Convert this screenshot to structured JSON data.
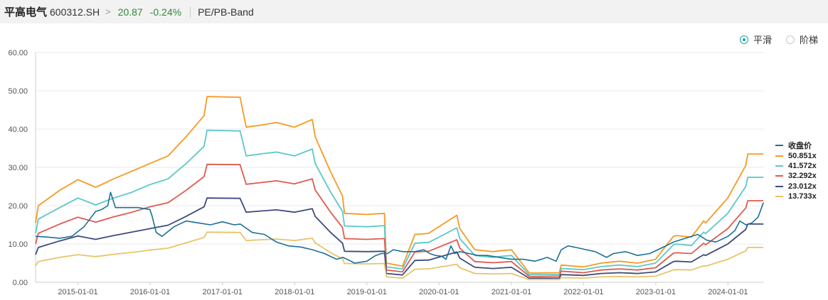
{
  "header": {
    "stock_name": "平高电气",
    "stock_code": "600312.SH",
    "chevron": ">",
    "price": "20.87",
    "change": "-0.24%",
    "band_label": "PE/PB-Band"
  },
  "mode_options": [
    {
      "label": "平滑",
      "selected": true
    },
    {
      "label": "阶梯",
      "selected": false
    }
  ],
  "chart_data": {
    "type": "line",
    "y_ticks": [
      "0.00",
      "10.00",
      "20.00",
      "30.00",
      "40.00",
      "50.00",
      "60.00"
    ],
    "ylim": [
      0,
      60
    ],
    "x_ticks": [
      "2015-01-01",
      "2016-01-01",
      "2017-01-01",
      "2018-01-01",
      "2019-01-01",
      "2020-01-01",
      "2021-01-01",
      "2022-01-01",
      "2023-01-01",
      "2024-01-01"
    ],
    "xlim": [
      "2014-06-01",
      "2024-07-01"
    ],
    "grid": "horizontal",
    "legend_placement": "right",
    "band_x": [
      "2014-06-01",
      "2014-06-15",
      "2014-10-01",
      "2015-01-01",
      "2015-04-01",
      "2015-07-01",
      "2015-10-01",
      "2015-12-31",
      "2016-04-01",
      "2016-07-01",
      "2016-09-30",
      "2016-10-15",
      "2017-03-31",
      "2017-05-01",
      "2017-07-10",
      "2017-10-01",
      "2017-12-31",
      "2018-03-31",
      "2018-04-15",
      "2018-06-30",
      "2018-08-31",
      "2018-09-10",
      "2018-12-31",
      "2019-03-31",
      "2019-04-10",
      "2019-06-30",
      "2019-09-01",
      "2019-10-31",
      "2019-11-10",
      "2020-03-31",
      "2020-04-15",
      "2020-06-30",
      "2020-09-30",
      "2020-10-31",
      "2021-01-01",
      "2021-03-31",
      "2021-04-15",
      "2021-08-31",
      "2021-09-10",
      "2021-12-31",
      "2022-03-31",
      "2022-06-30",
      "2022-09-30",
      "2022-12-31",
      "2023-03-31",
      "2023-04-15",
      "2023-06-30",
      "2023-08-31",
      "2023-09-10",
      "2023-12-31",
      "2024-03-31",
      "2024-04-10",
      "2024-06-28"
    ],
    "series": [
      {
        "name": "收盘价",
        "color": "#1c6f99",
        "role": "price",
        "x": [
          "2014-06-01",
          "2014-08-01",
          "2014-10-01",
          "2014-12-01",
          "2015-02-01",
          "2015-04-01",
          "2015-05-01",
          "2015-06-01",
          "2015-06-15",
          "2015-07-10",
          "2015-09-01",
          "2015-11-01",
          "2015-12-31",
          "2016-01-10",
          "2016-02-01",
          "2016-03-01",
          "2016-05-01",
          "2016-07-01",
          "2016-09-01",
          "2016-11-01",
          "2017-01-01",
          "2017-03-01",
          "2017-04-01",
          "2017-06-01",
          "2017-08-01",
          "2017-10-01",
          "2017-12-01",
          "2018-02-01",
          "2018-04-01",
          "2018-06-01",
          "2018-08-01",
          "2018-09-01",
          "2018-10-01",
          "2018-11-01",
          "2019-01-01",
          "2019-02-15",
          "2019-03-15",
          "2019-04-15",
          "2019-05-15",
          "2019-07-01",
          "2019-09-01",
          "2019-10-15",
          "2019-11-15",
          "2019-12-15",
          "2020-01-15",
          "2020-02-05",
          "2020-03-01",
          "2020-03-20",
          "2020-04-15",
          "2020-06-01",
          "2020-07-15",
          "2020-09-01",
          "2020-11-01",
          "2021-01-01",
          "2021-03-01",
          "2021-05-01",
          "2021-07-01",
          "2021-08-15",
          "2021-09-10",
          "2021-10-15",
          "2021-12-01",
          "2022-01-15",
          "2022-03-01",
          "2022-04-27",
          "2022-06-01",
          "2022-08-01",
          "2022-10-01",
          "2022-12-01",
          "2023-02-01",
          "2023-04-01",
          "2023-06-01",
          "2023-08-01",
          "2023-09-15",
          "2023-11-01",
          "2024-01-01",
          "2024-02-05",
          "2024-03-01",
          "2024-04-01",
          "2024-05-01",
          "2024-06-01",
          "2024-06-28"
        ],
        "values": [
          12.0,
          11.8,
          11.5,
          12.0,
          14.5,
          18.5,
          19.0,
          20.0,
          23.5,
          19.5,
          19.5,
          19.5,
          19.0,
          17.5,
          13.0,
          12.0,
          14.5,
          16.0,
          15.5,
          15.0,
          15.8,
          15.0,
          15.2,
          13.0,
          12.5,
          10.5,
          9.5,
          9.2,
          8.5,
          7.5,
          6.0,
          6.5,
          5.8,
          5.0,
          5.5,
          7.0,
          7.5,
          7.5,
          8.5,
          8.0,
          8.0,
          8.5,
          7.5,
          7.0,
          6.8,
          6.0,
          9.5,
          7.5,
          8.0,
          7.5,
          7.0,
          7.0,
          6.5,
          6.0,
          6.0,
          5.5,
          6.5,
          5.5,
          8.5,
          9.5,
          9.0,
          8.5,
          8.0,
          6.5,
          7.5,
          8.0,
          7.0,
          7.5,
          9.0,
          10.5,
          11.5,
          12.5,
          11.0,
          10.5,
          12.0,
          13.5,
          16.0,
          15.0,
          15.5,
          17.0,
          20.8
        ]
      },
      {
        "name": "50.851x",
        "color": "#f59a23",
        "values": [
          15.5,
          20.0,
          24.0,
          26.8,
          24.8,
          27.0,
          29.0,
          31.0,
          33.0,
          38.0,
          43.5,
          48.5,
          48.3,
          40.5,
          41.0,
          41.7,
          40.5,
          42.5,
          38.0,
          29.0,
          22.5,
          18.0,
          17.7,
          18.0,
          5.0,
          4.2,
          12.5,
          12.7,
          12.8,
          17.5,
          14.0,
          8.5,
          8.0,
          8.2,
          8.5,
          2.5,
          2.4,
          2.5,
          4.5,
          4.0,
          5.0,
          5.5,
          5.0,
          6.0,
          12.0,
          12.2,
          11.8,
          16.0,
          15.5,
          22.0,
          30.5,
          33.5,
          33.5
        ]
      },
      {
        "name": "41.572x",
        "color": "#5bc8c8",
        "values": [
          12.8,
          16.5,
          19.5,
          22.0,
          20.2,
          22.0,
          23.5,
          25.5,
          27.0,
          31.0,
          35.5,
          39.7,
          39.5,
          33.0,
          33.5,
          34.0,
          33.0,
          34.8,
          31.0,
          23.7,
          18.5,
          14.7,
          14.5,
          14.8,
          4.0,
          3.5,
          10.2,
          10.4,
          10.4,
          14.2,
          11.4,
          7.0,
          6.5,
          6.7,
          7.0,
          2.0,
          2.0,
          2.0,
          3.6,
          3.3,
          4.1,
          4.5,
          4.1,
          5.0,
          9.8,
          10.0,
          9.6,
          13.1,
          12.7,
          18.0,
          25.0,
          27.4,
          27.4
        ]
      },
      {
        "name": "32.292x",
        "color": "#e05a4e",
        "values": [
          10.0,
          12.8,
          15.2,
          17.0,
          15.7,
          17.1,
          18.3,
          19.7,
          20.8,
          24.0,
          27.6,
          30.8,
          30.7,
          25.6,
          26.0,
          26.5,
          25.7,
          27.0,
          24.1,
          18.4,
          14.3,
          11.4,
          11.2,
          11.4,
          3.2,
          2.7,
          7.9,
          8.1,
          8.1,
          11.1,
          8.9,
          5.4,
          5.1,
          5.2,
          5.4,
          1.6,
          1.5,
          1.6,
          2.9,
          2.5,
          3.2,
          3.5,
          3.2,
          3.8,
          7.6,
          7.7,
          7.5,
          10.2,
          9.8,
          14.0,
          19.4,
          21.3,
          21.3
        ]
      },
      {
        "name": "23.012x",
        "color": "#3d4b7d",
        "values": [
          7.2,
          9.1,
          10.8,
          12.1,
          11.2,
          12.2,
          13.1,
          14.0,
          14.9,
          17.2,
          19.7,
          22.0,
          21.9,
          18.3,
          18.6,
          18.9,
          18.3,
          19.2,
          17.2,
          13.1,
          10.2,
          8.1,
          8.0,
          8.1,
          2.3,
          1.9,
          5.7,
          5.8,
          5.8,
          7.9,
          6.3,
          3.9,
          3.6,
          3.7,
          3.9,
          1.1,
          1.1,
          1.1,
          2.0,
          1.8,
          2.3,
          2.5,
          2.3,
          2.7,
          5.4,
          5.5,
          5.3,
          7.2,
          7.0,
          10.0,
          13.8,
          15.2,
          15.2
        ]
      },
      {
        "name": "13.733x",
        "color": "#e8c468",
        "values": [
          4.3,
          5.4,
          6.5,
          7.2,
          6.7,
          7.3,
          7.8,
          8.4,
          8.9,
          10.3,
          11.7,
          13.1,
          13.0,
          10.9,
          11.1,
          11.3,
          10.9,
          11.5,
          10.3,
          7.8,
          6.1,
          4.9,
          4.8,
          4.9,
          1.4,
          1.1,
          3.4,
          3.5,
          3.5,
          4.7,
          3.8,
          2.3,
          2.2,
          2.2,
          2.3,
          0.7,
          0.7,
          0.7,
          1.2,
          1.1,
          1.4,
          1.5,
          1.4,
          1.6,
          3.2,
          3.3,
          3.2,
          4.3,
          4.2,
          6.0,
          8.2,
          9.1,
          9.1
        ]
      }
    ]
  },
  "style": {
    "grid_color": "#e8e8e8",
    "axis_color": "#cccccc",
    "tick_text_color": "#555555",
    "accent_color": "#1aa3a3",
    "up_down_color": "#2e8b3a"
  }
}
